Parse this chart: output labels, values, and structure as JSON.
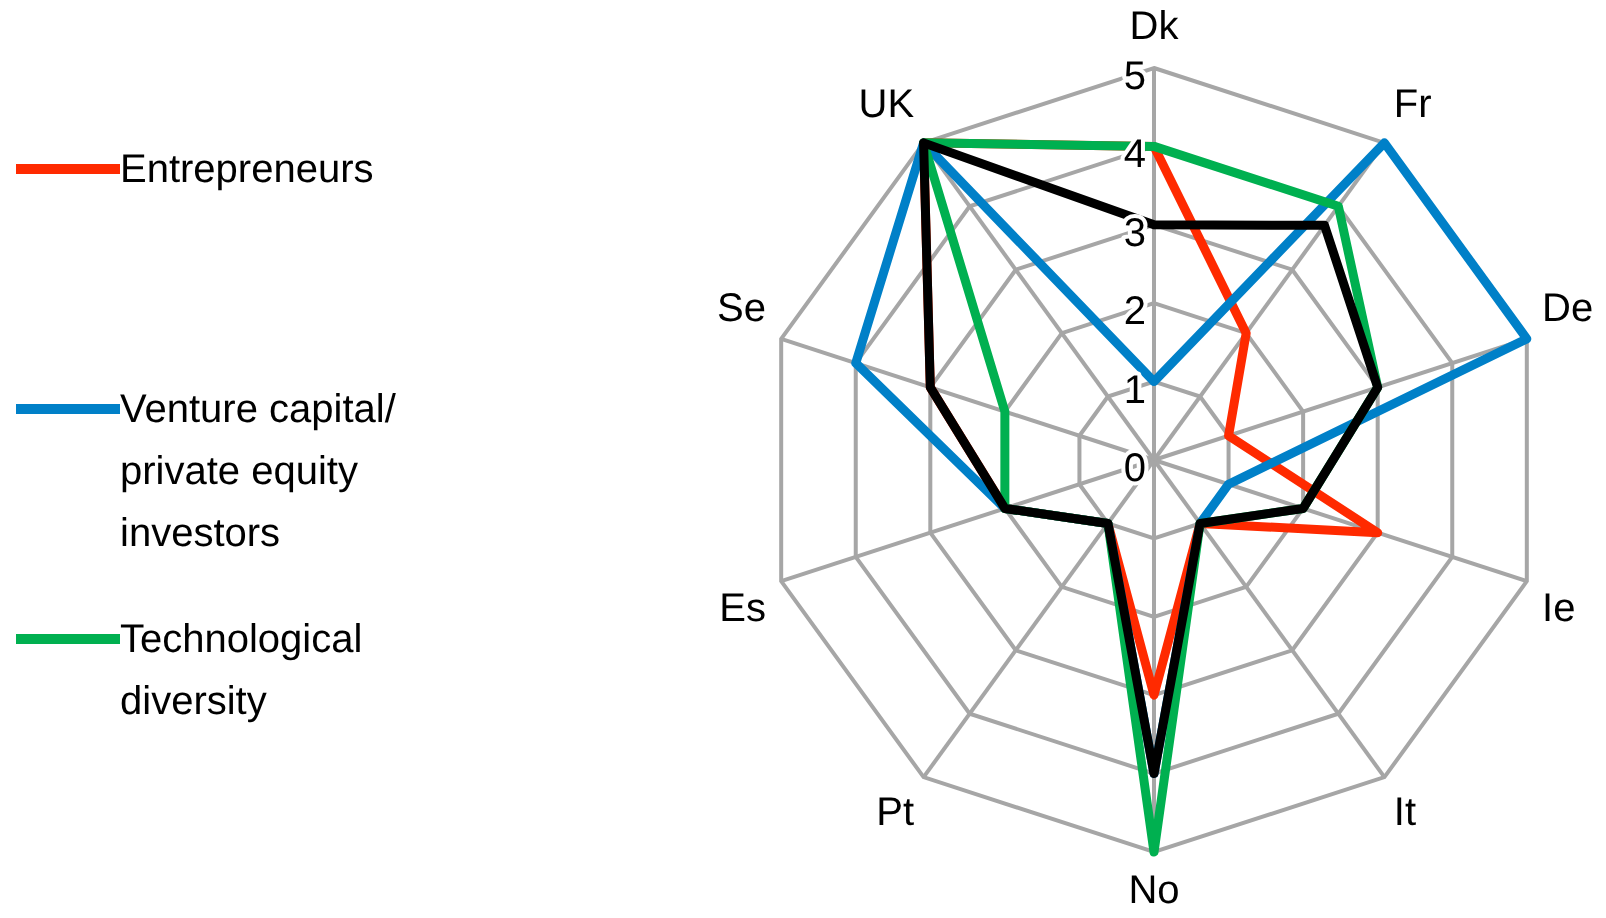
{
  "chart_data": {
    "type": "radar",
    "categories": [
      "Dk",
      "Fr",
      "De",
      "Ie",
      "It",
      "No",
      "Pt",
      "Es",
      "Se",
      "UK"
    ],
    "series": [
      {
        "name": "Entrepreneurs",
        "color": "#ff2a00",
        "values": [
          4,
          2,
          1,
          3,
          1,
          3,
          1,
          2,
          3,
          5
        ]
      },
      {
        "name": "Venture capital/ private equity investors",
        "color": "#0080c8",
        "values": [
          1,
          5,
          5,
          1,
          1,
          4,
          1,
          2,
          4,
          5
        ]
      },
      {
        "name": "Technological diversity",
        "color": "#00b050",
        "values": [
          4,
          4,
          3,
          2,
          1,
          5,
          1,
          2,
          2,
          5
        ]
      },
      {
        "color": "#000000",
        "values": [
          3,
          3.7,
          3,
          2,
          1,
          4,
          1,
          2,
          3,
          5
        ]
      }
    ],
    "ylim": [
      0,
      5
    ],
    "yticks": [
      0,
      1,
      2,
      3,
      4,
      5
    ],
    "grid": true,
    "legend": "left",
    "marker": "none"
  }
}
